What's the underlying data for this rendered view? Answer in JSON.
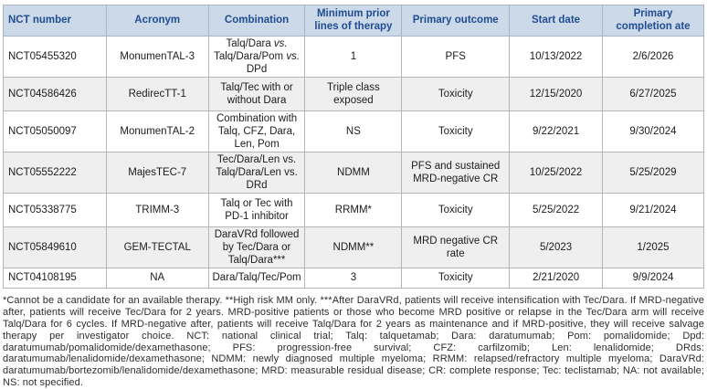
{
  "colors": {
    "header_bg": "#ccd9e8",
    "header_text": "#214d92",
    "row_alt_bg": "#efefef",
    "border": "#b5b5b5",
    "body_text": "#1c1c1c"
  },
  "table": {
    "columns": [
      "NCT number",
      "Acronym",
      "Combination",
      "Minimum prior lines of therapy",
      "Primary outcome",
      "Start date",
      "Primary completion ate"
    ],
    "rows": [
      {
        "nct_number": "NCT05455320",
        "acronym": "MonumenTAL-3",
        "combination": "Talq/Dara vs. Talq/Dara/Pom vs. DPd",
        "combination_italic_token": "vs.",
        "min_prior_lines": "1",
        "primary_outcome": "PFS",
        "start_date": "10/13/2022",
        "primary_completion": "2/6/2026"
      },
      {
        "nct_number": "NCT04586426",
        "acronym": "RedirecTT-1",
        "combination": "Talq/Tec with or without Dara",
        "min_prior_lines": "Triple class exposed",
        "primary_outcome": "Toxicity",
        "start_date": "12/15/2020",
        "primary_completion": "6/27/2025"
      },
      {
        "nct_number": "NCT05050097",
        "acronym": "MonumenTAL-2",
        "combination": "Combination with Talq, CFZ, Dara, Len, Pom",
        "min_prior_lines": "NS",
        "primary_outcome": "Toxicity",
        "start_date": "9/22/2021",
        "primary_completion": "9/30/2024"
      },
      {
        "nct_number": "NCT05552222",
        "acronym": "MajesTEC-7",
        "combination": "Tec/Dara/Len vs. Talq/Dara/Len vs. DRd",
        "min_prior_lines": "NDMM",
        "primary_outcome": "PFS and sustained MRD-negative CR",
        "start_date": "10/25/2022",
        "primary_completion": "5/25/2029"
      },
      {
        "nct_number": "NCT05338775",
        "acronym": "TRIMM-3",
        "combination": "Talq or Tec with PD-1 inhibitor",
        "min_prior_lines": "RRMM*",
        "primary_outcome": "Toxicity",
        "start_date": "5/25/2022",
        "primary_completion": "9/21/2024"
      },
      {
        "nct_number": "NCT05849610",
        "acronym": "GEM-TECTAL",
        "combination": "DaraVRd followed by Tec/Dara or Talq/Dara***",
        "min_prior_lines": "NDMM**",
        "primary_outcome": "MRD negative CR rate",
        "start_date": "5/2023",
        "primary_completion": "1/2025"
      },
      {
        "nct_number": "NCT04108195",
        "acronym": "NA",
        "combination": "Dara/Talq/Tec/Pom",
        "min_prior_lines": "3",
        "primary_outcome": "Toxicity",
        "start_date": "2/21/2020",
        "primary_completion": "9/9/2024"
      }
    ]
  },
  "footnote": "*Cannot be a candidate for an available therapy. **High risk MM only. ***After DaraVRd, patients will receive intensification with Tec/Dara. If MRD-negative after, patients will receive Tec/Dara for 2 years. MRD-positive patients or those who become MRD positive or relapse in the Tec/Dara arm will receive Talq/Dara for 6 cycles. If MRD-negative after, patients will receive Talq/Dara for 2 years as maintenance and if MRD-positive, they will receive salvage therapy per investigator choice. NCT: national clinical trial; Talq: talquetamab; Dara: daratumumab; Pom: pomalidomide; Dpd: daratumumab/pomalidomide/dexamethasone; PFS: progression-free survival; CFZ: carfilzomib; Len: lenalidomide; DRds: daratumumab/lenalidomide/dexamethasone; NDMM: newly diagnosed multiple myeloma; RRMM: relapsed/refractory multiple myeloma; DaraVRd: daratumumab/bortezomib/lenalidomide/dexamethasone; MRD: measurable residual disease; CR: complete response; Tec: teclistamab; NA: not available; NS: not specified."
}
